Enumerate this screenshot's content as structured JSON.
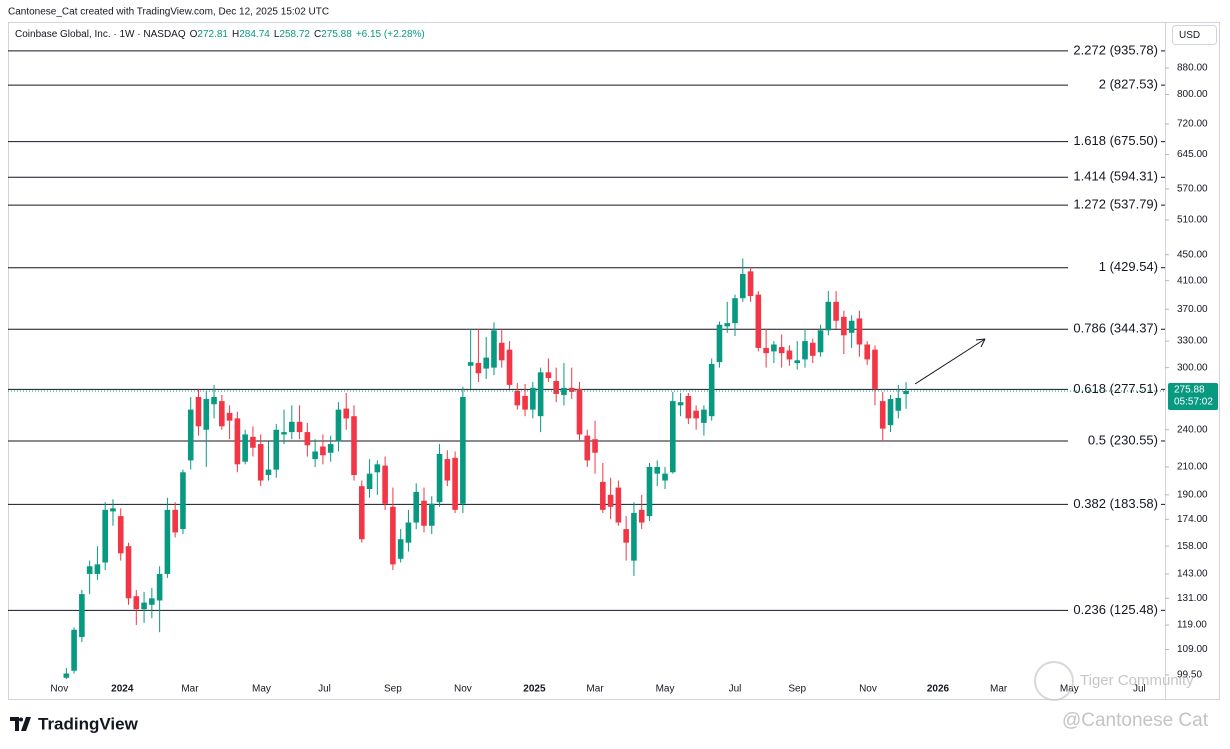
{
  "header": {
    "credit": "Cantonese_Cat created with TradingView.com, Dec 12, 2025 15:02 UTC",
    "ohlc_labels": [
      "O",
      "H",
      "L",
      "C"
    ],
    "ohlc": [
      272.81,
      284.74,
      258.72,
      275.88
    ],
    "change": "+6.15 (+2.28%)"
  },
  "footer": {
    "brand": "TradingView",
    "watermark": "Tiger Community",
    "signature": "@Cantonese Cat"
  },
  "chart_data": {
    "type": "candlestick",
    "title": "Coinbase Global, Inc. · 1W · NASDAQ",
    "currency": "USD",
    "log_scale": true,
    "up_color": "#089981",
    "down_color": "#f23645",
    "ylim": [
      97.7,
      1016
    ],
    "xlim": [
      -7.5,
      141.3
    ],
    "yticks": [
      {
        "value": 880,
        "label": "880.00"
      },
      {
        "value": 800,
        "label": "800.00"
      },
      {
        "value": 720,
        "label": "720.00"
      },
      {
        "value": 645,
        "label": "645.00"
      },
      {
        "value": 570,
        "label": "570.00"
      },
      {
        "value": 510,
        "label": "510.00"
      },
      {
        "value": 450,
        "label": "450.00"
      },
      {
        "value": 410,
        "label": "410.00"
      },
      {
        "value": 370,
        "label": "370.00"
      },
      {
        "value": 330,
        "label": "330.00"
      },
      {
        "value": 300,
        "label": "300.00"
      },
      {
        "value": 240,
        "label": "240.00"
      },
      {
        "value": 210,
        "label": "210.00"
      },
      {
        "value": 190,
        "label": "190.00"
      },
      {
        "value": 174,
        "label": "174.00"
      },
      {
        "value": 158,
        "label": "158.00"
      },
      {
        "value": 143,
        "label": "143.00"
      },
      {
        "value": 131,
        "label": "131.00"
      },
      {
        "value": 119,
        "label": "119.00"
      },
      {
        "value": 109,
        "label": "109.00"
      },
      {
        "value": 99.5,
        "label": "99.50"
      }
    ],
    "xticks": [
      {
        "value": -0.9,
        "label": "Nov"
      },
      {
        "value": 7.2,
        "label": "2024"
      },
      {
        "value": 15.9,
        "label": "Mar"
      },
      {
        "value": 25.1,
        "label": "May"
      },
      {
        "value": 33.2,
        "label": "Jul"
      },
      {
        "value": 42.0,
        "label": "Sep"
      },
      {
        "value": 51.0,
        "label": "Nov"
      },
      {
        "value": 60.2,
        "label": "2025"
      },
      {
        "value": 68.0,
        "label": "Mar"
      },
      {
        "value": 77.0,
        "label": "May"
      },
      {
        "value": 86.0,
        "label": "Jul"
      },
      {
        "value": 94.0,
        "label": "Sep"
      },
      {
        "value": 103.1,
        "label": "Nov"
      },
      {
        "value": 112.1,
        "label": "2026"
      },
      {
        "value": 119.9,
        "label": "Mar"
      },
      {
        "value": 129.0,
        "label": "May"
      },
      {
        "value": 138.0,
        "label": "Jul"
      }
    ],
    "levels": [
      {
        "value": 935.78,
        "label": "2.272 (935.78)"
      },
      {
        "value": 827.53,
        "label": "2 (827.53)"
      },
      {
        "value": 675.5,
        "label": "1.618 (675.50)"
      },
      {
        "value": 594.31,
        "label": "1.414 (594.31)"
      },
      {
        "value": 537.79,
        "label": "1.272 (537.79)"
      },
      {
        "value": 429.54,
        "label": "1 (429.54)"
      },
      {
        "value": 344.37,
        "label": "0.786 (344.37)"
      },
      {
        "value": 277.51,
        "label": "0.618 (277.51)"
      },
      {
        "value": 230.55,
        "label": "0.5 (230.55)"
      },
      {
        "value": 183.58,
        "label": "0.382 (183.58)"
      },
      {
        "value": 125.48,
        "label": "0.236 (125.48)"
      }
    ],
    "last_price": 275.88,
    "countdown": "05:57:02",
    "open": [
      98.5,
      101,
      114,
      143,
      143,
      149,
      179,
      176,
      158,
      132,
      126,
      128,
      130,
      143,
      180,
      168,
      215,
      270,
      240,
      263,
      266,
      255,
      250,
      214,
      234,
      228,
      204,
      208,
      236,
      238,
      247,
      238,
      216,
      226,
      221,
      230,
      259,
      252,
      196,
      194,
      206,
      211,
      182,
      151,
      160,
      172,
      186,
      170,
      185,
      216,
      217,
      184,
      302,
      305,
      299,
      300,
      328,
      320,
      276,
      271,
      258,
      252,
      295,
      286,
      272,
      279,
      278,
      235,
      232,
      199,
      190,
      195,
      168,
      150,
      180,
      176,
      205,
      200,
      206,
      262,
      271,
      257,
      246,
      252,
      306,
      348,
      352,
      385,
      424,
      390,
      322,
      318,
      323,
      319,
      305,
      309,
      328,
      317,
      343,
      380,
      360,
      340,
      358,
      326,
      320,
      266,
      244,
      257,
      272.81
    ],
    "high": [
      102,
      118,
      135,
      150,
      158,
      185,
      187,
      181,
      160,
      135,
      134,
      136,
      147,
      188,
      185,
      208,
      270,
      278,
      276,
      282,
      272,
      262,
      256,
      240,
      243,
      236,
      230,
      245,
      258,
      262,
      262,
      246,
      232,
      236,
      235,
      265,
      274,
      262,
      200,
      216,
      215,
      218,
      195,
      168,
      180,
      198,
      195,
      189,
      228,
      223,
      222,
      280,
      345,
      345,
      335,
      353,
      345,
      330,
      284,
      283,
      285,
      300,
      310,
      300,
      305,
      300,
      285,
      240,
      248,
      213,
      202,
      200,
      176,
      185,
      190,
      213,
      215,
      210,
      275,
      274,
      274,
      262,
      262,
      310,
      354,
      380,
      390,
      444,
      430,
      395,
      345,
      330,
      338,
      325,
      330,
      345,
      333,
      350,
      395,
      395,
      368,
      362,
      368,
      330,
      325,
      275,
      272,
      282,
      284.74
    ],
    "low": [
      98,
      100,
      112,
      133,
      140,
      145,
      170,
      150,
      128,
      119,
      120,
      122,
      116,
      141,
      163,
      165,
      208,
      235,
      210,
      250,
      240,
      232,
      206,
      212,
      218,
      196,
      200,
      202,
      228,
      232,
      232,
      218,
      210,
      212,
      214,
      222,
      240,
      200,
      160,
      188,
      190,
      180,
      145,
      149,
      155,
      168,
      166,
      165,
      182,
      196,
      178,
      178,
      278,
      285,
      288,
      292,
      300,
      278,
      258,
      252,
      250,
      238,
      285,
      265,
      262,
      268,
      230,
      210,
      205,
      178,
      174,
      170,
      150,
      142,
      168,
      173,
      196,
      194,
      205,
      252,
      245,
      240,
      235,
      248,
      300,
      340,
      336,
      380,
      380,
      318,
      300,
      305,
      300,
      302,
      298,
      300,
      305,
      312,
      337,
      345,
      315,
      322,
      312,
      303,
      262,
      230,
      238,
      250,
      258.72
    ],
    "close": [
      100,
      117,
      133,
      147,
      148,
      180,
      181,
      154,
      131,
      126,
      129,
      131,
      143,
      180,
      166,
      206,
      258,
      243,
      268,
      270,
      243,
      248,
      212,
      236,
      225,
      200,
      208,
      240,
      238,
      247,
      238,
      227,
      222,
      219,
      228,
      258,
      250,
      204,
      162,
      205,
      212,
      184,
      148,
      162,
      172,
      192,
      170,
      184,
      220,
      200,
      180,
      270,
      306,
      294,
      311,
      343,
      308,
      282,
      262,
      258,
      279,
      295,
      289,
      273,
      279,
      275,
      236,
      215,
      221,
      180,
      182,
      172,
      160,
      178,
      172,
      210,
      210,
      205,
      266,
      265,
      250,
      250,
      258,
      304,
      350,
      352,
      385,
      420,
      388,
      322,
      316,
      326,
      316,
      309,
      308,
      330,
      313,
      343,
      380,
      355,
      337,
      355,
      326,
      309,
      278,
      241,
      268,
      269,
      275.88
    ]
  }
}
